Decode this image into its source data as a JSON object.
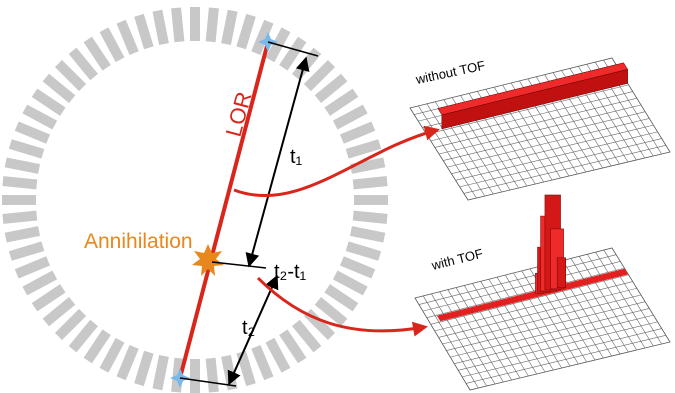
{
  "labels": {
    "lor": "LOR",
    "t1": "t₁",
    "annihilation": "Annihilation",
    "t2_minus_t1": "t₂-t₁",
    "t2": "t₂"
  },
  "panels": {
    "without_tof": "without TOF",
    "with_tof": "with TOF"
  }
}
